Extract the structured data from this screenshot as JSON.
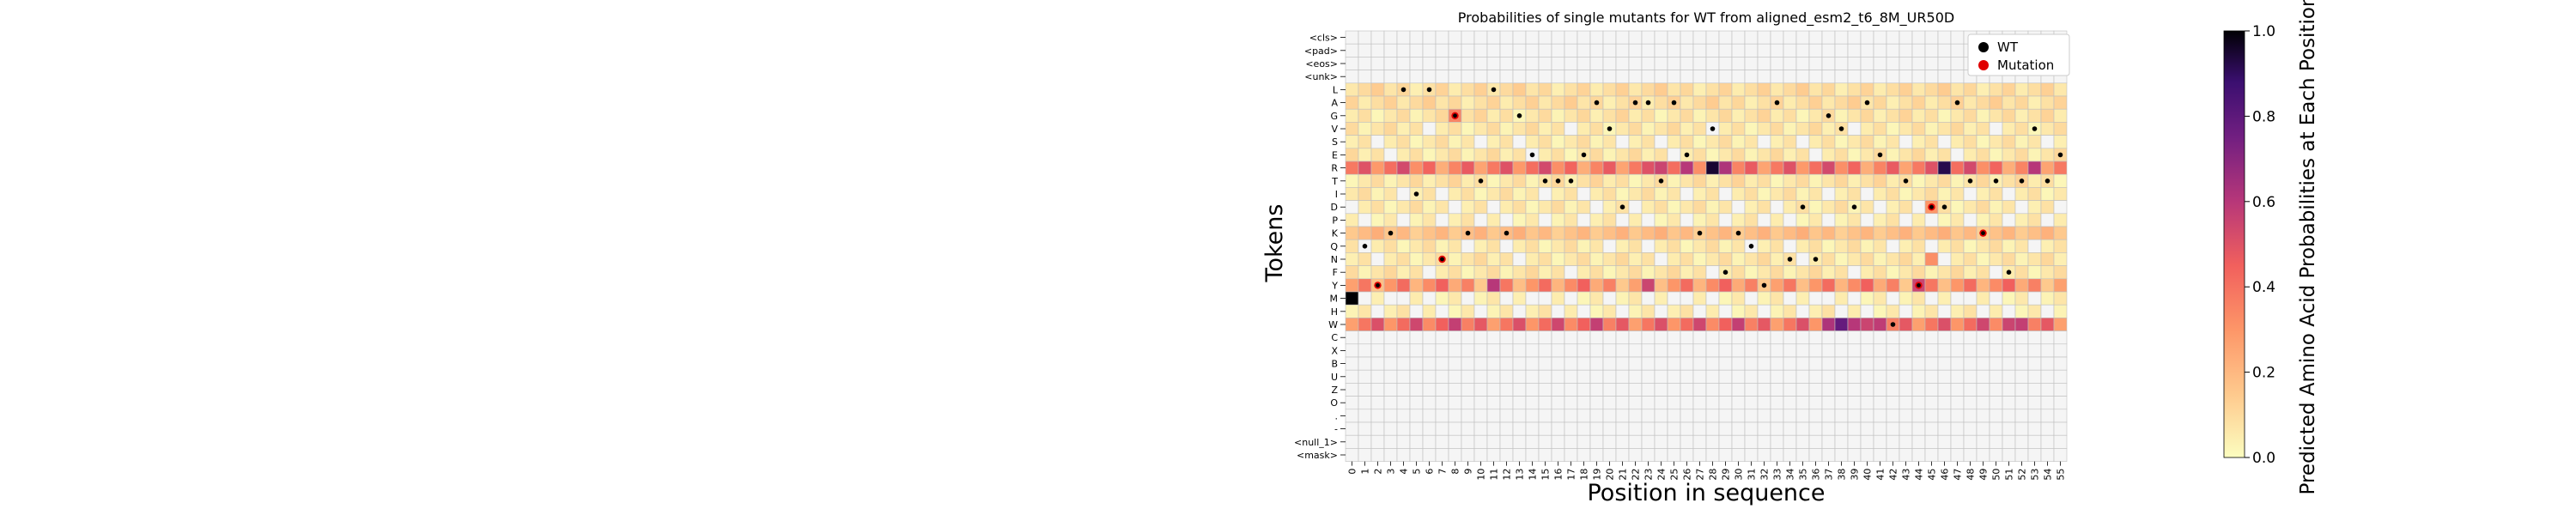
{
  "chart_data": {
    "type": "heatmap",
    "title": "Probabilities of single mutants for WT from aligned_esm2_t6_8M_UR50D",
    "xlabel": "Position in sequence",
    "ylabel": "Tokens",
    "colorbar_label": "Predicted Amino Acid Probabilities at Each Position",
    "colorbar_ticks": [
      "0.0",
      "0.2",
      "0.4",
      "0.6",
      "0.8",
      "1.0"
    ],
    "colorbar_range": [
      0,
      1
    ],
    "colormap": "magma_r",
    "legend": {
      "placement": "top-right",
      "items": [
        "WT",
        "Mutation"
      ]
    },
    "wt_color": "#000000",
    "mutation_color": "#e00000",
    "x_ticks": [
      "0",
      "1",
      "2",
      "3",
      "4",
      "5",
      "6",
      "7",
      "8",
      "9",
      "10",
      "11",
      "12",
      "13",
      "14",
      "15",
      "16",
      "17",
      "18",
      "19",
      "20",
      "21",
      "22",
      "23",
      "24",
      "25",
      "26",
      "27",
      "28",
      "29",
      "30",
      "31",
      "32",
      "33",
      "34",
      "35",
      "36",
      "37",
      "38",
      "39",
      "40",
      "41",
      "42",
      "43",
      "44",
      "45",
      "46",
      "47",
      "48",
      "49",
      "50",
      "51",
      "52",
      "53",
      "54",
      "55"
    ],
    "y_tokens": [
      "<cls>",
      "<pad>",
      "<eos>",
      "<unk>",
      "L",
      "A",
      "G",
      "V",
      "S",
      "E",
      "R",
      "T",
      "I",
      "D",
      "P",
      "K",
      "Q",
      "N",
      "F",
      "Y",
      "M",
      "H",
      "W",
      "C",
      "X",
      "B",
      "U",
      "Z",
      "O",
      ".",
      "-",
      "<null_1>",
      "<mask>"
    ],
    "row_levels": {
      "L": 0.09,
      "A": 0.09,
      "G": 0.07,
      "V": 0.06,
      "S": 0.05,
      "E": 0.06,
      "R": 0.38,
      "T": 0.07,
      "I": 0.05,
      "D": 0.05,
      "P": 0.03,
      "K": 0.18,
      "Q": 0.05,
      "N": 0.06,
      "F": 0.06,
      "Y": 0.3,
      "M": 0.02,
      "H": 0.03,
      "W": 0.42
    },
    "strong_cells": [
      {
        "token": "M",
        "pos": 0,
        "value": 1.0
      },
      {
        "token": "G",
        "pos": 8,
        "value": 0.35
      },
      {
        "token": "R",
        "pos": 28,
        "value": 0.95
      },
      {
        "token": "R",
        "pos": 46,
        "value": 0.92
      },
      {
        "token": "R",
        "pos": 24,
        "value": 0.55
      },
      {
        "token": "R",
        "pos": 26,
        "value": 0.6
      },
      {
        "token": "R",
        "pos": 29,
        "value": 0.62
      },
      {
        "token": "R",
        "pos": 53,
        "value": 0.6
      },
      {
        "token": "Y",
        "pos": 11,
        "value": 0.6
      },
      {
        "token": "Y",
        "pos": 23,
        "value": 0.55
      },
      {
        "token": "Y",
        "pos": 44,
        "value": 0.55
      },
      {
        "token": "W",
        "pos": 37,
        "value": 0.62
      },
      {
        "token": "W",
        "pos": 38,
        "value": 0.78
      },
      {
        "token": "W",
        "pos": 39,
        "value": 0.6
      },
      {
        "token": "W",
        "pos": 40,
        "value": 0.55
      },
      {
        "token": "W",
        "pos": 41,
        "value": 0.58
      },
      {
        "token": "W",
        "pos": 51,
        "value": 0.55
      },
      {
        "token": "N",
        "pos": 45,
        "value": 0.32
      },
      {
        "token": "D",
        "pos": 45,
        "value": 0.3
      }
    ],
    "wt_dots": [
      {
        "token": "Q",
        "pos": 1
      },
      {
        "token": "Y",
        "pos": 2
      },
      {
        "token": "K",
        "pos": 3
      },
      {
        "token": "L",
        "pos": 4
      },
      {
        "token": "I",
        "pos": 5
      },
      {
        "token": "L",
        "pos": 6
      },
      {
        "token": "N",
        "pos": 7
      },
      {
        "token": "G",
        "pos": 8
      },
      {
        "token": "K",
        "pos": 9
      },
      {
        "token": "T",
        "pos": 10
      },
      {
        "token": "L",
        "pos": 11
      },
      {
        "token": "K",
        "pos": 12
      },
      {
        "token": "G",
        "pos": 13
      },
      {
        "token": "E",
        "pos": 14
      },
      {
        "token": "T",
        "pos": 15
      },
      {
        "token": "T",
        "pos": 16
      },
      {
        "token": "T",
        "pos": 17
      },
      {
        "token": "E",
        "pos": 18
      },
      {
        "token": "A",
        "pos": 19
      },
      {
        "token": "V",
        "pos": 20
      },
      {
        "token": "D",
        "pos": 21
      },
      {
        "token": "A",
        "pos": 22
      },
      {
        "token": "A",
        "pos": 23
      },
      {
        "token": "T",
        "pos": 24
      },
      {
        "token": "A",
        "pos": 25
      },
      {
        "token": "E",
        "pos": 26
      },
      {
        "token": "K",
        "pos": 27
      },
      {
        "token": "V",
        "pos": 28
      },
      {
        "token": "F",
        "pos": 29
      },
      {
        "token": "K",
        "pos": 30
      },
      {
        "token": "Q",
        "pos": 31
      },
      {
        "token": "Y",
        "pos": 32
      },
      {
        "token": "A",
        "pos": 33
      },
      {
        "token": "N",
        "pos": 34
      },
      {
        "token": "D",
        "pos": 35
      },
      {
        "token": "N",
        "pos": 36
      },
      {
        "token": "G",
        "pos": 37
      },
      {
        "token": "V",
        "pos": 38
      },
      {
        "token": "D",
        "pos": 39
      },
      {
        "token": "A",
        "pos": 40
      },
      {
        "token": "E",
        "pos": 41
      },
      {
        "token": "W",
        "pos": 42
      },
      {
        "token": "T",
        "pos": 43
      },
      {
        "token": "Y",
        "pos": 44
      },
      {
        "token": "D",
        "pos": 45
      },
      {
        "token": "D",
        "pos": 46
      },
      {
        "token": "A",
        "pos": 47
      },
      {
        "token": "T",
        "pos": 48
      },
      {
        "token": "K",
        "pos": 49
      },
      {
        "token": "T",
        "pos": 50
      },
      {
        "token": "F",
        "pos": 51
      },
      {
        "token": "T",
        "pos": 52
      },
      {
        "token": "V",
        "pos": 53
      },
      {
        "token": "T",
        "pos": 54
      },
      {
        "token": "E",
        "pos": 55
      }
    ],
    "mutation_dots": [
      {
        "token": "Y",
        "pos": 2
      },
      {
        "token": "G",
        "pos": 8
      },
      {
        "token": "N",
        "pos": 7
      },
      {
        "token": "D",
        "pos": 45
      },
      {
        "token": "K",
        "pos": 49
      },
      {
        "token": "Y",
        "pos": 44
      }
    ]
  }
}
